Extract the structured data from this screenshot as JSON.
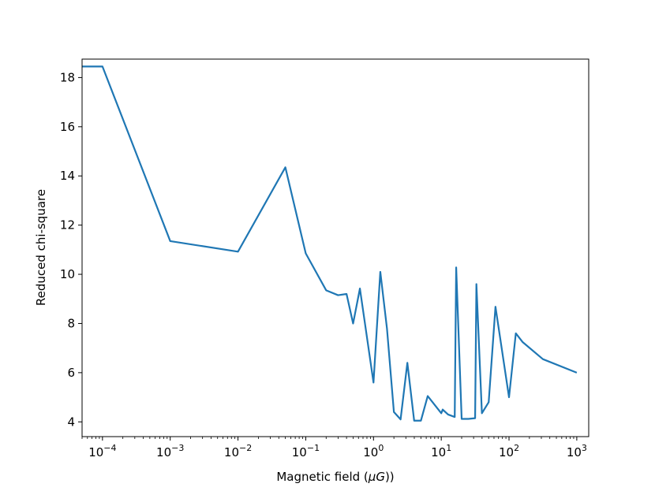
{
  "chart_data": {
    "type": "line",
    "title": "",
    "xlabel": "Magnetic field (μG))",
    "ylabel": "Reduced chi-square",
    "xscale": "log",
    "xlim": [
      5e-05,
      1500
    ],
    "ylim": [
      3.4,
      18.75
    ],
    "grid": false,
    "legend": "none",
    "line_color": "#1f77b4",
    "xticks": [
      {
        "value": 0.0001,
        "base": "10",
        "exp": "−4"
      },
      {
        "value": 0.001,
        "base": "10",
        "exp": "−3"
      },
      {
        "value": 0.01,
        "base": "10",
        "exp": "−2"
      },
      {
        "value": 0.1,
        "base": "10",
        "exp": "−1"
      },
      {
        "value": 1,
        "base": "10",
        "exp": "0"
      },
      {
        "value": 10,
        "base": "10",
        "exp": "1"
      },
      {
        "value": 100,
        "base": "10",
        "exp": "2"
      },
      {
        "value": 1000,
        "base": "10",
        "exp": "3"
      }
    ],
    "yticks": [
      {
        "value": 4,
        "label": "4"
      },
      {
        "value": 6,
        "label": "6"
      },
      {
        "value": 8,
        "label": "8"
      },
      {
        "value": 10,
        "label": "10"
      },
      {
        "value": 12,
        "label": "12"
      },
      {
        "value": 14,
        "label": "14"
      },
      {
        "value": 16,
        "label": "16"
      },
      {
        "value": 18,
        "label": "18"
      }
    ],
    "series": [
      {
        "x": [
          5e-05,
          0.0001,
          0.001,
          0.01,
          0.05,
          0.1,
          0.2,
          0.3,
          0.4,
          0.5,
          0.63,
          1.0,
          1.26,
          1.58,
          2.0,
          2.51,
          3.16,
          3.98,
          5.01,
          6.31,
          10.0,
          10.5,
          12.6,
          15.8,
          16.6,
          20.0,
          25.1,
          31.6,
          33.0,
          39.8,
          50.1,
          63.1,
          100,
          126,
          158,
          316,
          1000
        ],
        "y": [
          18.45,
          18.45,
          11.35,
          10.92,
          14.35,
          10.85,
          9.35,
          9.15,
          9.2,
          8.0,
          9.42,
          5.6,
          10.1,
          7.8,
          4.4,
          4.1,
          6.4,
          4.05,
          4.05,
          5.05,
          4.35,
          4.5,
          4.3,
          4.2,
          10.28,
          4.12,
          4.12,
          4.15,
          9.6,
          4.35,
          4.8,
          8.68,
          5.0,
          7.6,
          7.25,
          6.55,
          6.0
        ]
      }
    ]
  }
}
